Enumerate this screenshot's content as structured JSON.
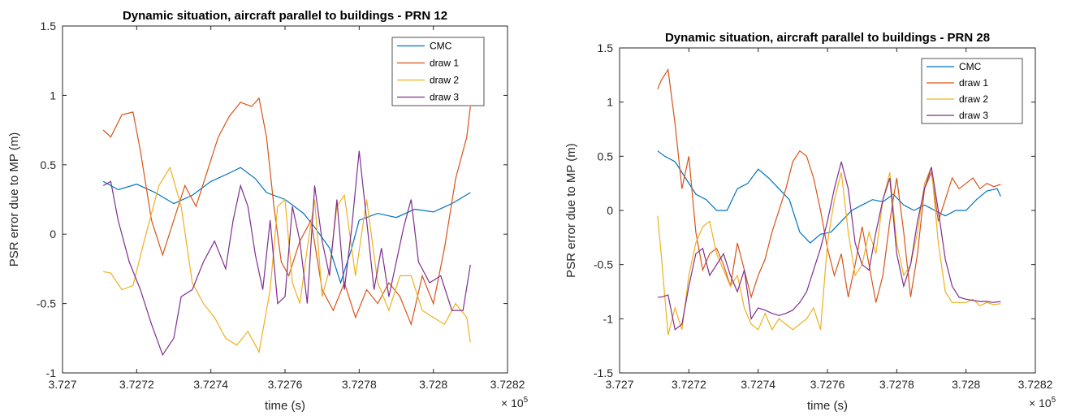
{
  "colors": {
    "CMC": "#0072BD",
    "draw 1": "#D95319",
    "draw 2": "#EDB120",
    "draw 3": "#7E2F8E"
  },
  "chart_data": [
    {
      "type": "line",
      "title": "Dynamic situation, aircraft parallel to buildings - PRN 12",
      "xlabel": "time (s)",
      "ylabel": "PSR error due to MP (m)",
      "xlim": [
        372700,
        372820
      ],
      "ylim": [
        -1,
        1.5
      ],
      "xticks": [
        372700,
        372720,
        372740,
        372760,
        372780,
        372800,
        372820
      ],
      "xtick_labels": [
        "3.727",
        "3.7272",
        "3.7274",
        "3.7276",
        "3.7278",
        "3.728",
        "3.7282"
      ],
      "yticks": [
        -1,
        -0.5,
        0,
        0.5,
        1,
        1.5
      ],
      "ytick_labels": [
        "-1",
        "-0.5",
        "0",
        "0.5",
        "1",
        "1.5"
      ],
      "x_exponent": "× 10",
      "x_exponent_power": "5",
      "legend_position": "top-right",
      "series": [
        {
          "name": "CMC",
          "x": [
            372711,
            372715,
            372720,
            372725,
            372730,
            372735,
            372740,
            372745,
            372748,
            372752,
            372755,
            372760,
            372765,
            372768,
            372772,
            372775,
            372778,
            372780,
            372785,
            372790,
            372795,
            372800,
            372805,
            372810
          ],
          "y": [
            0.38,
            0.32,
            0.36,
            0.3,
            0.22,
            0.28,
            0.38,
            0.44,
            0.48,
            0.4,
            0.3,
            0.25,
            0.15,
            0.05,
            -0.1,
            -0.35,
            -0.1,
            0.1,
            0.15,
            0.12,
            0.18,
            0.16,
            0.22,
            0.3
          ]
        },
        {
          "name": "draw 1",
          "x": [
            372711,
            372713,
            372716,
            372719,
            372721,
            372724,
            372727,
            372730,
            372733,
            372736,
            372739,
            372742,
            372745,
            372748,
            372751,
            372753,
            372755,
            372757,
            372759,
            372761,
            372764,
            372767,
            372770,
            372773,
            372776,
            372779,
            372782,
            372785,
            372788,
            372791,
            372794,
            372797,
            372800,
            372803,
            372806,
            372809,
            372810
          ],
          "y": [
            0.75,
            0.7,
            0.86,
            0.88,
            0.6,
            0.1,
            -0.15,
            0.1,
            0.35,
            0.2,
            0.45,
            0.7,
            0.85,
            0.95,
            0.92,
            0.98,
            0.7,
            0.2,
            -0.2,
            -0.3,
            -0.05,
            0.1,
            -0.4,
            -0.55,
            -0.35,
            -0.6,
            -0.4,
            -0.5,
            -0.35,
            -0.45,
            -0.65,
            -0.3,
            -0.5,
            -0.1,
            0.4,
            0.7,
            0.92
          ]
        },
        {
          "name": "draw 2",
          "x": [
            372711,
            372713,
            372716,
            372719,
            372722,
            372726,
            372729,
            372732,
            372735,
            372738,
            372741,
            372744,
            372747,
            372750,
            372753,
            372756,
            372758,
            372760,
            372762,
            372764,
            372766,
            372768,
            372770,
            372772,
            372774,
            372776,
            372779,
            372782,
            372785,
            372788,
            372791,
            372794,
            372797,
            372800,
            372803,
            372806,
            372809,
            372810
          ],
          "y": [
            -0.27,
            -0.28,
            -0.4,
            -0.37,
            -0.05,
            0.35,
            0.48,
            0.2,
            -0.35,
            -0.5,
            -0.6,
            -0.75,
            -0.8,
            -0.7,
            -0.85,
            -0.4,
            0.2,
            0.25,
            -0.35,
            -0.5,
            -0.1,
            0.25,
            -0.45,
            -0.25,
            0.2,
            0.28,
            -0.3,
            0.25,
            -0.35,
            -0.55,
            -0.3,
            -0.3,
            -0.55,
            -0.6,
            -0.65,
            -0.5,
            -0.6,
            -0.78
          ]
        },
        {
          "name": "draw 3",
          "x": [
            372711,
            372713,
            372715,
            372718,
            372721,
            372724,
            372727,
            372730,
            372732,
            372735,
            372738,
            372741,
            372744,
            372746,
            372748,
            372750,
            372752,
            372754,
            372756,
            372758,
            372760,
            372762,
            372764,
            372766,
            372768,
            372770,
            372772,
            372774,
            372776,
            372778,
            372780,
            372782,
            372784,
            372786,
            372788,
            372790,
            372792,
            372794,
            372796,
            372799,
            372802,
            372805,
            372808,
            372810
          ],
          "y": [
            0.35,
            0.38,
            0.1,
            -0.2,
            -0.4,
            -0.65,
            -0.87,
            -0.75,
            -0.45,
            -0.4,
            -0.2,
            -0.05,
            -0.25,
            0.1,
            0.35,
            0.2,
            -0.15,
            -0.4,
            0.1,
            -0.5,
            -0.45,
            0.2,
            -0.05,
            -0.5,
            0.35,
            -0.05,
            -0.3,
            0.25,
            -0.4,
            0.05,
            0.6,
            0.1,
            -0.4,
            -0.1,
            -0.45,
            -0.2,
            0.05,
            0.25,
            -0.2,
            -0.35,
            -0.3,
            -0.55,
            -0.55,
            -0.22
          ]
        }
      ]
    },
    {
      "type": "line",
      "title": "Dynamic situation, aircraft parallel to buildings - PRN 28",
      "xlabel": "time (s)",
      "ylabel": "PSR error due to MP (m)",
      "xlim": [
        372700,
        372820
      ],
      "ylim": [
        -1.5,
        1.5
      ],
      "xticks": [
        372700,
        372720,
        372740,
        372760,
        372780,
        372800,
        372820
      ],
      "xtick_labels": [
        "3.727",
        "3.7272",
        "3.7274",
        "3.7276",
        "3.7278",
        "3.728",
        "3.7282"
      ],
      "yticks": [
        -1.5,
        -1,
        -0.5,
        0,
        0.5,
        1,
        1.5
      ],
      "ytick_labels": [
        "-1.5",
        "-1",
        "-0.5",
        "0",
        "0.5",
        "1",
        "1.5"
      ],
      "x_exponent": "× 10",
      "x_exponent_power": "5",
      "legend_position": "top-right",
      "series": [
        {
          "name": "CMC",
          "x": [
            372711,
            372713,
            372716,
            372719,
            372722,
            372725,
            372728,
            372731,
            372734,
            372737,
            372740,
            372743,
            372746,
            372749,
            372752,
            372755,
            372758,
            372761,
            372764,
            372767,
            372770,
            372773,
            372776,
            372779,
            372782,
            372785,
            372788,
            372791,
            372794,
            372797,
            372800,
            372803,
            372806,
            372809,
            372810
          ],
          "y": [
            0.55,
            0.5,
            0.45,
            0.3,
            0.15,
            0.1,
            0.0,
            0.0,
            0.2,
            0.25,
            0.38,
            0.3,
            0.2,
            0.1,
            -0.2,
            -0.3,
            -0.22,
            -0.2,
            -0.1,
            0.0,
            0.05,
            0.1,
            0.08,
            0.15,
            0.05,
            0.0,
            0.05,
            0.0,
            -0.05,
            0.0,
            0.0,
            0.1,
            0.18,
            0.2,
            0.13
          ]
        },
        {
          "name": "draw 1",
          "x": [
            372711,
            372712,
            372714,
            372716,
            372718,
            372720,
            372722,
            372724,
            372726,
            372728,
            372730,
            372732,
            372734,
            372736,
            372738,
            372740,
            372742,
            372744,
            372746,
            372748,
            372750,
            372752,
            372754,
            372756,
            372758,
            372760,
            372762,
            372764,
            372766,
            372768,
            372770,
            372772,
            372774,
            372776,
            372778,
            372780,
            372782,
            372784,
            372786,
            372788,
            372790,
            372792,
            372794,
            372796,
            372798,
            372800,
            372802,
            372804,
            372806,
            372808,
            372810
          ],
          "y": [
            1.12,
            1.2,
            1.3,
            0.8,
            0.2,
            0.5,
            -0.2,
            -0.55,
            -0.4,
            -0.35,
            -0.5,
            -0.7,
            -0.3,
            -0.55,
            -0.8,
            -0.6,
            -0.45,
            -0.2,
            0.0,
            0.2,
            0.45,
            0.55,
            0.5,
            0.3,
            0.0,
            -0.35,
            -0.6,
            -0.4,
            -0.8,
            -0.5,
            -0.15,
            -0.5,
            -0.85,
            -0.6,
            -0.1,
            0.3,
            -0.2,
            -0.8,
            -0.4,
            0.2,
            0.35,
            -0.1,
            0.1,
            0.3,
            0.2,
            0.25,
            0.3,
            0.2,
            0.25,
            0.22,
            0.24
          ]
        },
        {
          "name": "draw 2",
          "x": [
            372711,
            372712,
            372714,
            372716,
            372718,
            372720,
            372722,
            372724,
            372726,
            372728,
            372730,
            372732,
            372734,
            372736,
            372738,
            372740,
            372742,
            372744,
            372746,
            372748,
            372750,
            372752,
            372754,
            372756,
            372758,
            372760,
            372762,
            372764,
            372766,
            372768,
            372770,
            372772,
            372774,
            372776,
            372778,
            372780,
            372782,
            372784,
            372786,
            372788,
            372790,
            372792,
            372794,
            372796,
            372798,
            372800,
            372802,
            372804,
            372806,
            372808,
            372810
          ],
          "y": [
            -0.05,
            -0.4,
            -1.15,
            -0.9,
            -1.1,
            -0.6,
            -0.3,
            -0.15,
            -0.1,
            -0.4,
            -0.55,
            -0.7,
            -0.6,
            -0.9,
            -1.05,
            -1.1,
            -0.95,
            -1.1,
            -1.0,
            -1.05,
            -1.1,
            -1.05,
            -1.0,
            -0.9,
            -1.1,
            -0.3,
            0.1,
            0.35,
            -0.2,
            -0.6,
            -0.5,
            -0.2,
            -0.4,
            0.1,
            0.35,
            -0.3,
            -0.6,
            -0.5,
            -0.2,
            0.25,
            0.4,
            -0.3,
            -0.75,
            -0.85,
            -0.85,
            -0.85,
            -0.82,
            -0.88,
            -0.85,
            -0.87,
            -0.86
          ]
        },
        {
          "name": "draw 3",
          "x": [
            372711,
            372712,
            372714,
            372716,
            372718,
            372720,
            372722,
            372724,
            372726,
            372728,
            372730,
            372732,
            372734,
            372736,
            372738,
            372740,
            372742,
            372744,
            372746,
            372748,
            372750,
            372752,
            372754,
            372756,
            372758,
            372760,
            372762,
            372764,
            372766,
            372768,
            372770,
            372772,
            372774,
            372776,
            372778,
            372780,
            372782,
            372784,
            372786,
            372788,
            372790,
            372792,
            372794,
            372796,
            372798,
            372800,
            372802,
            372804,
            372806,
            372808,
            372810
          ],
          "y": [
            -0.8,
            -0.8,
            -0.78,
            -1.1,
            -1.05,
            -0.7,
            -0.4,
            -0.35,
            -0.6,
            -0.5,
            -0.4,
            -0.6,
            -0.75,
            -0.55,
            -1.0,
            -0.9,
            -0.92,
            -0.95,
            -0.97,
            -0.95,
            -0.92,
            -0.85,
            -0.75,
            -0.55,
            -0.35,
            -0.1,
            0.2,
            0.45,
            0.2,
            -0.3,
            -0.5,
            -0.55,
            -0.2,
            0.1,
            0.3,
            -0.4,
            -0.7,
            -0.5,
            -0.1,
            0.2,
            0.4,
            0.0,
            -0.45,
            -0.7,
            -0.8,
            -0.82,
            -0.83,
            -0.84,
            -0.84,
            -0.85,
            -0.84
          ]
        }
      ]
    }
  ]
}
